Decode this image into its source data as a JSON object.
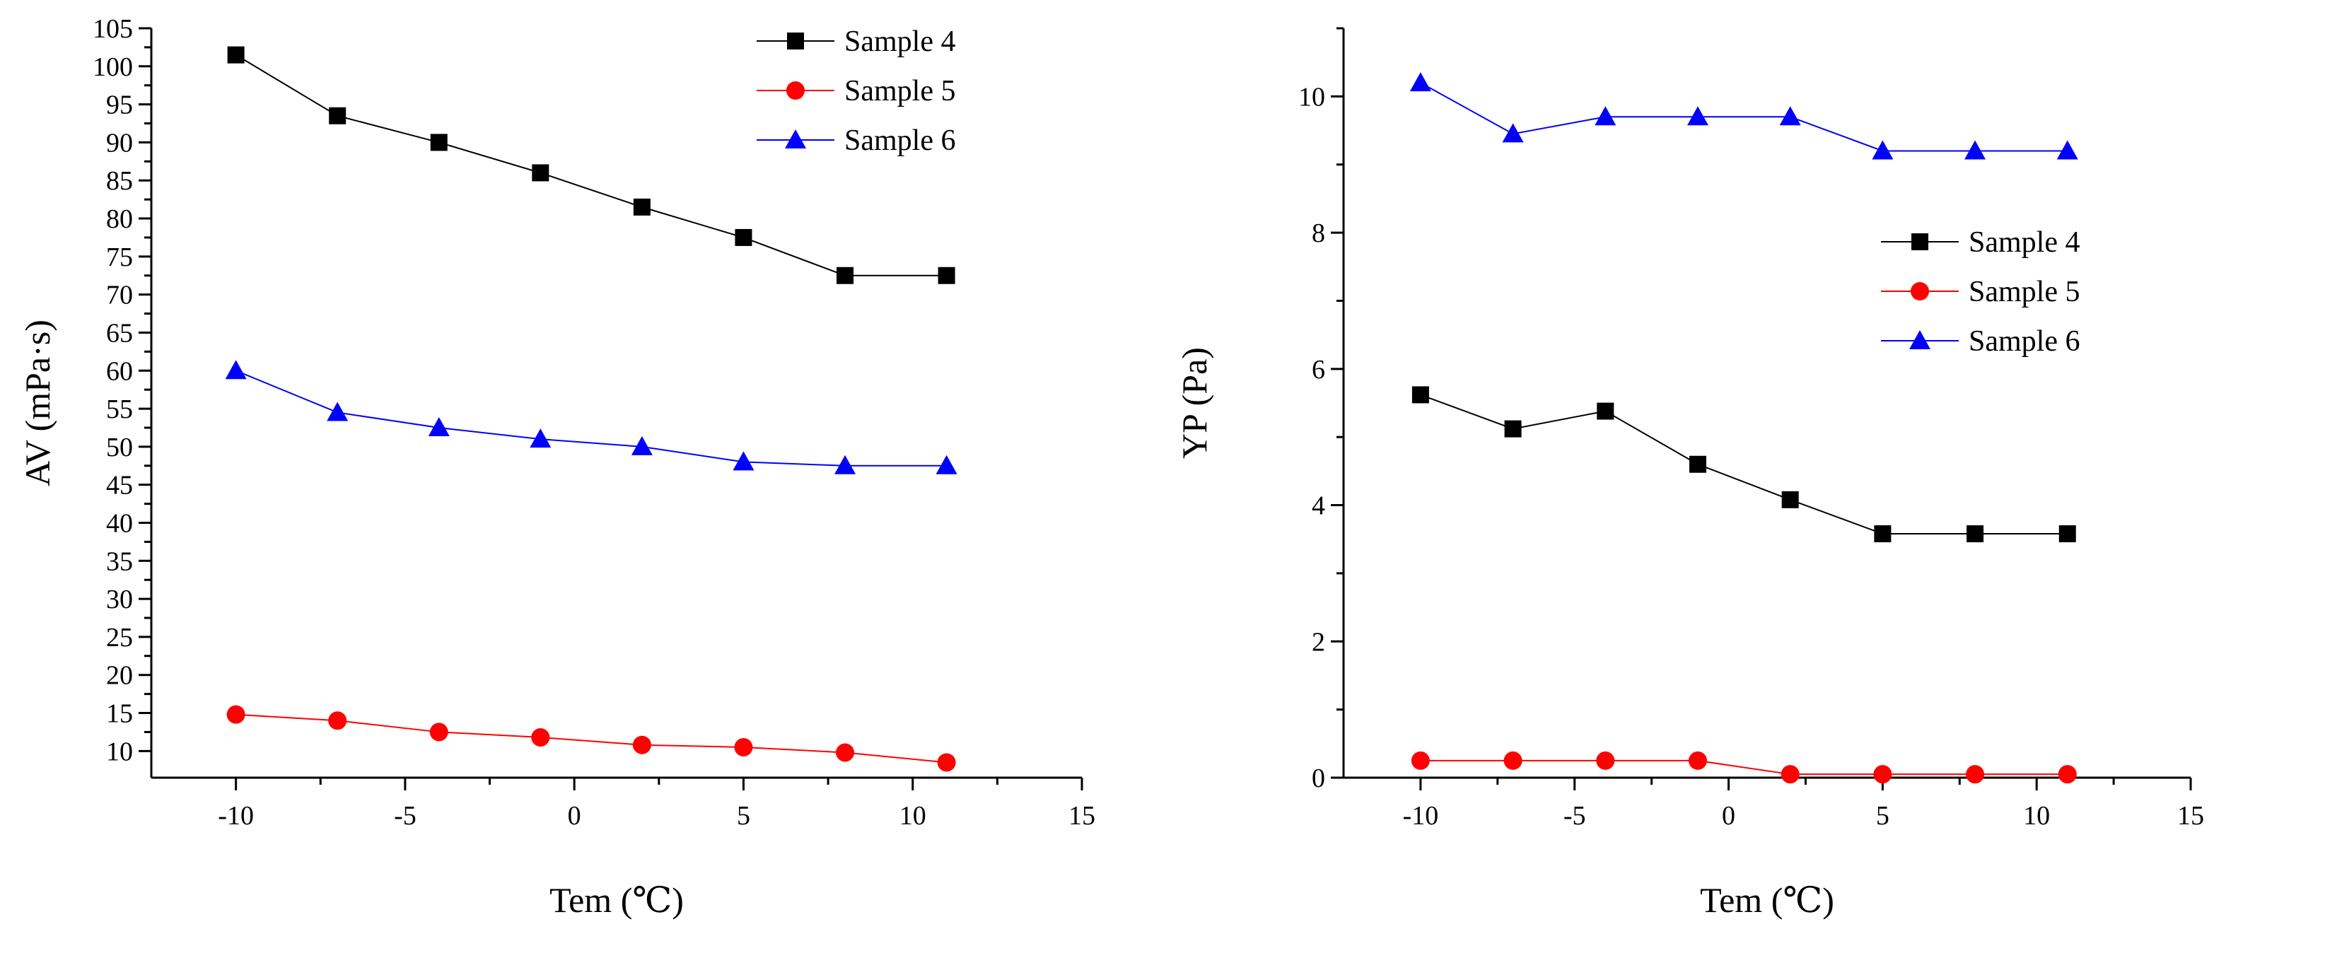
{
  "chart_data": [
    {
      "type": "line",
      "xlabel": "Tem (℃)",
      "ylabel": "AV (mPa·s)",
      "xlim": [
        -12.5,
        15
      ],
      "ylim": [
        6.5,
        105
      ],
      "x_ticks": [
        "-10",
        "-5",
        "0",
        "5",
        "10",
        "15"
      ],
      "y_ticks": [
        "10",
        "15",
        "20",
        "25",
        "30",
        "35",
        "40",
        "45",
        "50",
        "55",
        "60",
        "65",
        "70",
        "75",
        "80",
        "85",
        "90",
        "95",
        "100",
        "105"
      ],
      "grid": false,
      "legend_position": "top-right",
      "x": [
        -10,
        -7,
        -4,
        -1,
        2,
        5,
        8,
        11
      ],
      "series": [
        {
          "name": "Sample 4",
          "marker": "square",
          "color": "#000000",
          "line": true,
          "values": [
            101.5,
            93.5,
            90,
            86,
            81.5,
            77.5,
            72.5,
            72.5
          ]
        },
        {
          "name": "Sample 5",
          "marker": "circle",
          "color": "#ff0000",
          "line": true,
          "values": [
            14.8,
            14,
            12.5,
            11.8,
            10.8,
            10.5,
            9.8,
            8.5
          ]
        },
        {
          "name": "Sample 6",
          "marker": "triangle",
          "color": "#0000ff",
          "line": true,
          "values": [
            60,
            54.5,
            52.5,
            51,
            50,
            48,
            47.5,
            47.5
          ]
        }
      ]
    },
    {
      "type": "line",
      "xlabel": "Tem (℃)",
      "ylabel": "YP (Pa)",
      "xlim": [
        -12.5,
        15
      ],
      "ylim": [
        0,
        11
      ],
      "x_ticks": [
        "-10",
        "-5",
        "0",
        "5",
        "10",
        "15"
      ],
      "y_ticks": [
        "0",
        "2",
        "4",
        "6",
        "8",
        "10"
      ],
      "grid": false,
      "legend_position": "middle-right",
      "x": [
        -10,
        -7,
        -4,
        -1,
        2,
        5,
        8,
        11
      ],
      "series": [
        {
          "name": "Sample 4",
          "marker": "square",
          "color": "#000000",
          "line": true,
          "values": [
            5.62,
            5.12,
            5.38,
            4.6,
            4.08,
            3.58,
            3.58,
            3.58
          ]
        },
        {
          "name": "Sample 5",
          "marker": "circle",
          "color": "#ff0000",
          "line": true,
          "values": [
            0.25,
            0.25,
            0.25,
            0.25,
            0.05,
            0.05,
            0.05,
            0.05
          ]
        },
        {
          "name": "Sample 6",
          "marker": "triangle",
          "color": "#0000ff",
          "line": true,
          "values": [
            10.2,
            9.45,
            9.7,
            9.7,
            9.7,
            9.2,
            9.2,
            9.2
          ]
        }
      ]
    }
  ]
}
